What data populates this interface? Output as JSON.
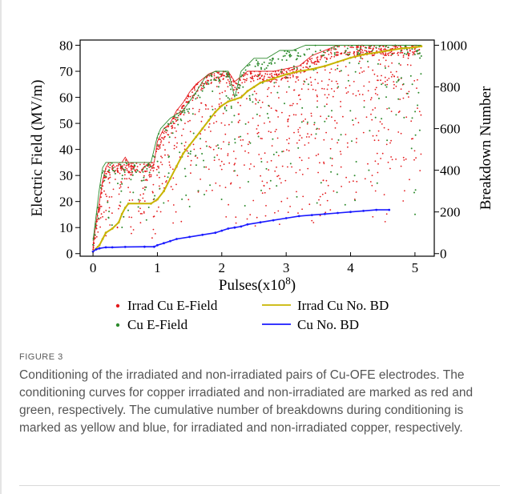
{
  "figure": {
    "label": "FIGURE 3",
    "caption": "Conditioning of the irradiated and non-irradiated pairs of Cu-OFE electrodes. The conditioning curves for copper irradiated and non-irradiated are marked as red and green, respectively. The cumulative number of breakdowns during conditioning is marked as yellow and blue, for irradiated and non-irradiated copper, respectively."
  },
  "chart_data": {
    "type": "scatter",
    "title": "",
    "xlabel": "Pulses (x10^8)",
    "xlabel_base": "Pulses",
    "xlabel_mult": "(x10",
    "xlabel_exp": "8",
    "xlabel_close": ")",
    "ylabel_left": "Electric Field (MV/m)",
    "ylabel_right": "Breakdown Number",
    "xlim": [
      -0.2,
      5.3
    ],
    "ylim_left": [
      -1,
      82
    ],
    "ylim_right": [
      -12.5,
      1025
    ],
    "x_ticks": [
      0,
      1,
      2,
      3,
      4,
      5
    ],
    "y_left_ticks": [
      0,
      10,
      20,
      30,
      40,
      50,
      60,
      70,
      80
    ],
    "y_right_ticks": [
      0,
      200,
      400,
      600,
      800,
      1000
    ],
    "legend_position": "bottom",
    "colors": {
      "irrad_field": "#e41a1c",
      "cu_field": "#2e8b2e",
      "irrad_bd": "#c8b400",
      "cu_bd": "#1a1aff"
    },
    "series": [
      {
        "name": "Irrad Cu E-Field",
        "axis": "left",
        "marker": "dot",
        "envelope": [
          [
            0.0,
            3
          ],
          [
            0.05,
            12
          ],
          [
            0.1,
            20
          ],
          [
            0.15,
            28
          ],
          [
            0.2,
            33
          ],
          [
            0.25,
            35
          ],
          [
            0.35,
            35
          ],
          [
            0.45,
            35
          ],
          [
            0.5,
            37
          ],
          [
            0.55,
            35
          ],
          [
            0.95,
            35
          ],
          [
            1.0,
            43
          ],
          [
            1.1,
            48
          ],
          [
            1.2,
            50
          ],
          [
            1.3,
            55
          ],
          [
            1.4,
            58
          ],
          [
            1.5,
            62
          ],
          [
            1.6,
            65
          ],
          [
            1.7,
            67
          ],
          [
            1.8,
            69
          ],
          [
            1.9,
            70
          ],
          [
            2.0,
            70
          ],
          [
            2.1,
            70
          ],
          [
            2.2,
            66
          ],
          [
            2.3,
            68
          ],
          [
            2.4,
            70
          ],
          [
            2.6,
            70
          ],
          [
            2.8,
            70
          ],
          [
            3.0,
            71
          ],
          [
            3.2,
            72
          ],
          [
            3.4,
            76
          ],
          [
            3.6,
            78
          ],
          [
            3.8,
            80
          ],
          [
            4.0,
            80
          ],
          [
            4.5,
            80
          ],
          [
            5.1,
            80
          ]
        ]
      },
      {
        "name": "Cu E-Field",
        "axis": "left",
        "marker": "dot",
        "envelope": [
          [
            0.0,
            5
          ],
          [
            0.05,
            15
          ],
          [
            0.1,
            25
          ],
          [
            0.15,
            33
          ],
          [
            0.2,
            35
          ],
          [
            0.9,
            35
          ],
          [
            1.0,
            45
          ],
          [
            1.05,
            48
          ],
          [
            1.2,
            52
          ],
          [
            1.4,
            55
          ],
          [
            1.6,
            62
          ],
          [
            1.75,
            68
          ],
          [
            1.9,
            70
          ],
          [
            2.1,
            70
          ],
          [
            2.2,
            60
          ],
          [
            2.3,
            70
          ],
          [
            2.5,
            75
          ],
          [
            2.7,
            75
          ],
          [
            2.9,
            78
          ],
          [
            3.1,
            78
          ],
          [
            3.3,
            80
          ],
          [
            3.6,
            80
          ],
          [
            4.0,
            80
          ],
          [
            4.5,
            80
          ],
          [
            5.1,
            80
          ]
        ]
      },
      {
        "name": "Irrad Cu No. BD",
        "axis": "right",
        "marker": "line",
        "x": [
          0.0,
          0.1,
          0.15,
          0.2,
          0.3,
          0.4,
          0.45,
          0.5,
          0.55,
          0.9,
          1.0,
          1.1,
          1.2,
          1.3,
          1.4,
          1.5,
          1.6,
          1.7,
          1.8,
          1.9,
          2.0,
          2.1,
          2.2,
          2.3,
          2.4,
          2.5,
          2.6,
          2.8,
          3.0,
          3.2,
          3.4,
          3.6,
          3.8,
          4.0,
          4.2,
          4.4,
          4.6,
          4.8,
          5.0,
          5.1
        ],
        "y": [
          10,
          40,
          70,
          100,
          120,
          150,
          190,
          220,
          240,
          240,
          260,
          300,
          360,
          420,
          480,
          520,
          560,
          600,
          640,
          680,
          710,
          730,
          740,
          750,
          780,
          800,
          820,
          840,
          860,
          875,
          885,
          900,
          920,
          940,
          955,
          965,
          975,
          985,
          990,
          995
        ]
      },
      {
        "name": "Cu No. BD",
        "axis": "right",
        "marker": "line",
        "x": [
          0.0,
          0.05,
          0.1,
          0.2,
          0.3,
          0.5,
          0.8,
          0.95,
          1.0,
          1.1,
          1.2,
          1.3,
          1.5,
          1.7,
          1.9,
          2.0,
          2.1,
          2.2,
          2.3,
          2.4,
          2.6,
          2.8,
          3.0,
          3.2,
          3.4,
          3.6,
          3.8,
          4.0,
          4.2,
          4.4,
          4.6
        ],
        "y": [
          10,
          20,
          25,
          30,
          30,
          32,
          33,
          33,
          40,
          50,
          60,
          70,
          80,
          90,
          100,
          110,
          120,
          125,
          130,
          140,
          150,
          160,
          170,
          180,
          185,
          190,
          195,
          200,
          205,
          210,
          210
        ]
      }
    ]
  }
}
